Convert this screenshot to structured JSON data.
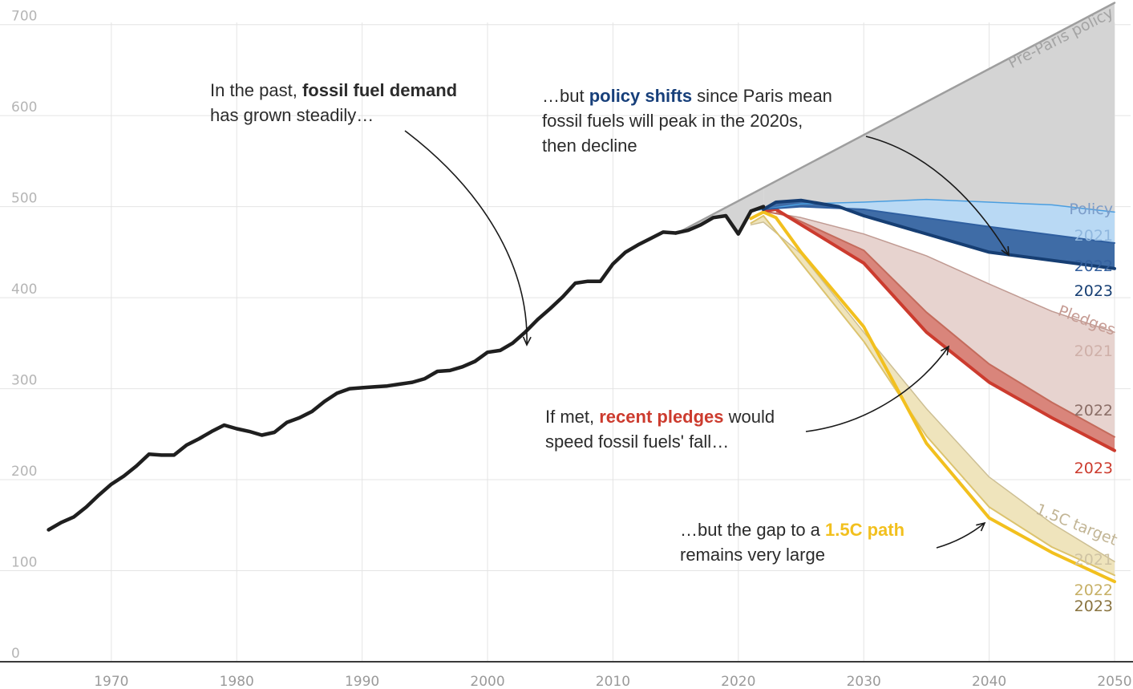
{
  "chart_data": {
    "type": "line",
    "xlim": [
      1964,
      2050
    ],
    "ylim": [
      0,
      720
    ],
    "x_ticks": [
      "1970",
      "1980",
      "1990",
      "2000",
      "2010",
      "2020",
      "2030",
      "2040",
      "2050"
    ],
    "y_ticks": [
      "0",
      "100",
      "200",
      "300",
      "400",
      "500",
      "600",
      "700"
    ],
    "grid": true,
    "colors": {
      "historical": "#1f1f1f",
      "pre_paris": "#9e9e9e",
      "pre_paris_fill": "#d4d4d4",
      "policy_2021": "#4a9ee0",
      "policy_2022": "#2f5fa0",
      "policy_2023": "#163e73",
      "policy_fill_light": "#b9d9f4",
      "policy_fill_dark": "#3f6ca6",
      "pledges_2021": "#c09a92",
      "pledges_2022": "#c46b5c",
      "pledges_2023": "#cc3b2e",
      "pledges_fill_light": "#e7d3cf",
      "pledges_fill_dark": "#d9857b",
      "target_2021": "#cdbf94",
      "target_2022": "#dcc36e",
      "target_2023": "#f2c01e",
      "target_fill": "#efe4bc"
    },
    "historical": {
      "x": [
        1965,
        1966,
        1967,
        1968,
        1969,
        1970,
        1971,
        1972,
        1973,
        1974,
        1975,
        1976,
        1977,
        1978,
        1979,
        1980,
        1981,
        1982,
        1983,
        1984,
        1985,
        1986,
        1987,
        1988,
        1989,
        1990,
        1991,
        1992,
        1993,
        1994,
        1995,
        1996,
        1997,
        1998,
        1999,
        2000,
        2001,
        2002,
        2003,
        2004,
        2005,
        2006,
        2007,
        2008,
        2009,
        2010,
        2011,
        2012,
        2013,
        2014,
        2015,
        2016,
        2017,
        2018,
        2019,
        2020,
        2021,
        2022
      ],
      "y": [
        145,
        153,
        159,
        170,
        183,
        195,
        204,
        215,
        228,
        227,
        227,
        238,
        245,
        253,
        260,
        256,
        253,
        249,
        252,
        263,
        268,
        275,
        286,
        295,
        300,
        301,
        302,
        303,
        305,
        307,
        311,
        319,
        320,
        324,
        330,
        340,
        342,
        350,
        362,
        376,
        388,
        401,
        416,
        418,
        418,
        437,
        450,
        458,
        465,
        472,
        471,
        474,
        480,
        488,
        490,
        470,
        495,
        500
      ]
    },
    "series": [
      {
        "name": "Pre-Paris policy",
        "x": [
          2015,
          2050
        ],
        "y": [
          470,
          724
        ]
      },
      {
        "name": "Policy 2021",
        "x": [
          2021,
          2025,
          2030,
          2035,
          2040,
          2045,
          2050
        ],
        "y": [
          495,
          503,
          505,
          508,
          505,
          502,
          494
        ]
      },
      {
        "name": "Policy 2022",
        "x": [
          2022,
          2025,
          2030,
          2040,
          2050
        ],
        "y": [
          497,
          500,
          497,
          478,
          460
        ]
      },
      {
        "name": "Policy 2023",
        "x": [
          2022,
          2023,
          2025,
          2028,
          2030,
          2040,
          2050
        ],
        "y": [
          497,
          505,
          507,
          500,
          490,
          450,
          432
        ]
      },
      {
        "name": "Pledges 2021",
        "x": [
          2022,
          2025,
          2030,
          2035,
          2040,
          2045,
          2050
        ],
        "y": [
          495,
          488,
          470,
          446,
          415,
          385,
          362
        ]
      },
      {
        "name": "Pledges 2022",
        "x": [
          2022,
          2024,
          2030,
          2035,
          2040,
          2045,
          2050
        ],
        "y": [
          495,
          490,
          452,
          384,
          327,
          285,
          247
        ]
      },
      {
        "name": "Pledges 2023",
        "x": [
          2022,
          2023,
          2030,
          2035,
          2040,
          2045,
          2050
        ],
        "y": [
          495,
          497,
          438,
          362,
          307,
          268,
          232
        ]
      },
      {
        "name": "1.5C target 2021",
        "x": [
          2021,
          2022,
          2025,
          2030,
          2035,
          2040,
          2045,
          2050
        ],
        "y": [
          480,
          483,
          448,
          362,
          278,
          203,
          152,
          110
        ]
      },
      {
        "name": "1.5C target 2022",
        "x": [
          2021,
          2022,
          2025,
          2030,
          2035,
          2040,
          2045,
          2050
        ],
        "y": [
          482,
          490,
          438,
          352,
          248,
          170,
          126,
          95
        ]
      },
      {
        "name": "1.5C target 2023",
        "x": [
          2021,
          2022,
          2023,
          2025,
          2030,
          2035,
          2040,
          2045,
          2050
        ],
        "y": [
          487,
          494,
          488,
          450,
          368,
          240,
          158,
          120,
          88
        ]
      }
    ],
    "labels": {
      "pre_paris": "Pre-Paris policy",
      "policy": "Policy",
      "pledges": "Pledges",
      "target": "1.5C target",
      "policy_2021": "2021",
      "policy_2022": "2022",
      "policy_2023": "2023",
      "pledges_2021": "2021",
      "pledges_2022": "2022",
      "pledges_2023": "2023",
      "target_2021": "2021",
      "target_2022": "2022",
      "target_2023": "2023"
    },
    "annotations": {
      "past": {
        "text_before": "In the past, ",
        "bold": "fossil fuel demand",
        "text_after": "has grown steadily…"
      },
      "policy": {
        "text_before": "…but ",
        "bold": "policy shifts",
        "text_after_1": " since Paris mean",
        "line2": "fossil fuels will peak in the 2020s,",
        "line3": "then decline"
      },
      "pledges": {
        "text_before": "If met, ",
        "bold": "recent pledges",
        "text_after_1": " would",
        "line2": "speed fossil fuels' fall…"
      },
      "target": {
        "text_before": "…but the gap to a ",
        "bold": "1.5C path",
        "line2": "remains very large"
      }
    }
  }
}
